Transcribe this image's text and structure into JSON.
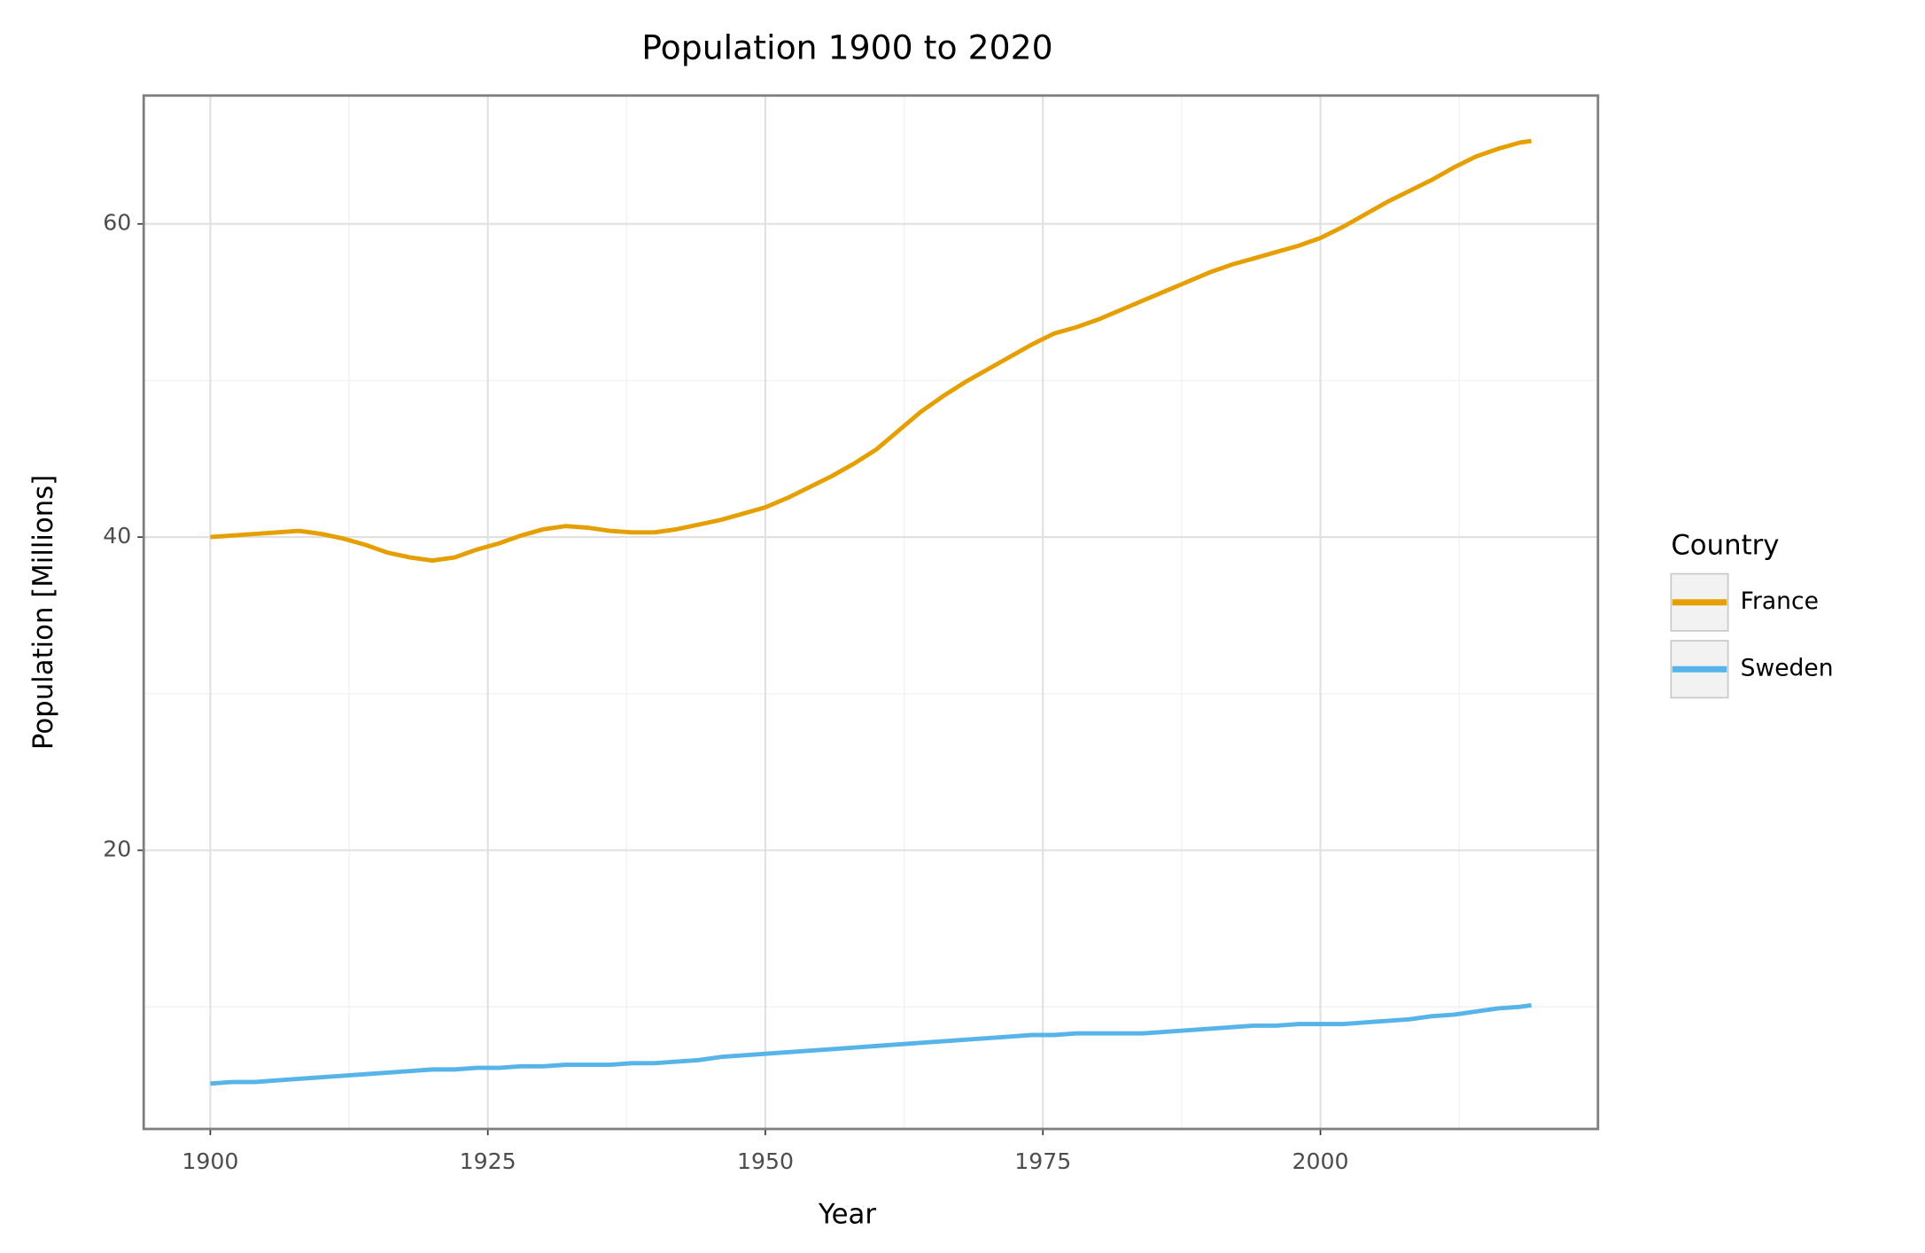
{
  "chart_data": {
    "type": "line",
    "title": "Population 1900 to 2020",
    "x_label": "Year",
    "y_label": "Population [Millions]",
    "legend_title": "Country",
    "legend_position": "right",
    "grid": true,
    "x": [
      1900,
      1902,
      1904,
      1906,
      1908,
      1910,
      1912,
      1914,
      1916,
      1918,
      1920,
      1922,
      1924,
      1926,
      1928,
      1930,
      1932,
      1934,
      1936,
      1938,
      1940,
      1942,
      1944,
      1946,
      1948,
      1950,
      1952,
      1954,
      1956,
      1958,
      1960,
      1962,
      1964,
      1966,
      1968,
      1970,
      1972,
      1974,
      1976,
      1978,
      1980,
      1982,
      1984,
      1986,
      1988,
      1990,
      1992,
      1994,
      1996,
      1998,
      2000,
      2002,
      2004,
      2006,
      2008,
      2010,
      2012,
      2014,
      2016,
      2018,
      2019
    ],
    "series": [
      {
        "name": "France",
        "color": "#E69F00",
        "values": [
          40.0,
          40.1,
          40.2,
          40.3,
          40.4,
          40.2,
          39.9,
          39.5,
          39.0,
          38.7,
          38.5,
          38.7,
          39.2,
          39.6,
          40.1,
          40.5,
          40.7,
          40.6,
          40.4,
          40.3,
          40.3,
          40.5,
          40.8,
          41.1,
          41.5,
          41.9,
          42.5,
          43.2,
          43.9,
          44.7,
          45.6,
          46.8,
          48.0,
          49.0,
          49.9,
          50.7,
          51.5,
          52.3,
          53.0,
          53.4,
          53.9,
          54.5,
          55.1,
          55.7,
          56.3,
          56.9,
          57.4,
          57.8,
          58.2,
          58.6,
          59.1,
          59.8,
          60.6,
          61.4,
          62.1,
          62.8,
          63.6,
          64.3,
          64.8,
          65.2,
          65.3
        ]
      },
      {
        "name": "Sweden",
        "color": "#56B4E9",
        "values": [
          5.1,
          5.2,
          5.2,
          5.3,
          5.4,
          5.5,
          5.6,
          5.7,
          5.8,
          5.9,
          6.0,
          6.0,
          6.1,
          6.1,
          6.2,
          6.2,
          6.3,
          6.3,
          6.3,
          6.4,
          6.4,
          6.5,
          6.6,
          6.8,
          6.9,
          7.0,
          7.1,
          7.2,
          7.3,
          7.4,
          7.5,
          7.6,
          7.7,
          7.8,
          7.9,
          8.0,
          8.1,
          8.2,
          8.2,
          8.3,
          8.3,
          8.3,
          8.3,
          8.4,
          8.5,
          8.6,
          8.7,
          8.8,
          8.8,
          8.9,
          8.9,
          8.9,
          9.0,
          9.1,
          9.2,
          9.4,
          9.5,
          9.7,
          9.9,
          10.0,
          10.1
        ]
      }
    ],
    "xlim": [
      1894,
      2025
    ],
    "xticks": [
      1900,
      1925,
      1950,
      1975,
      2000
    ],
    "ylim": [
      2.2,
      68.2
    ],
    "yticks": [
      20,
      40,
      60
    ]
  }
}
